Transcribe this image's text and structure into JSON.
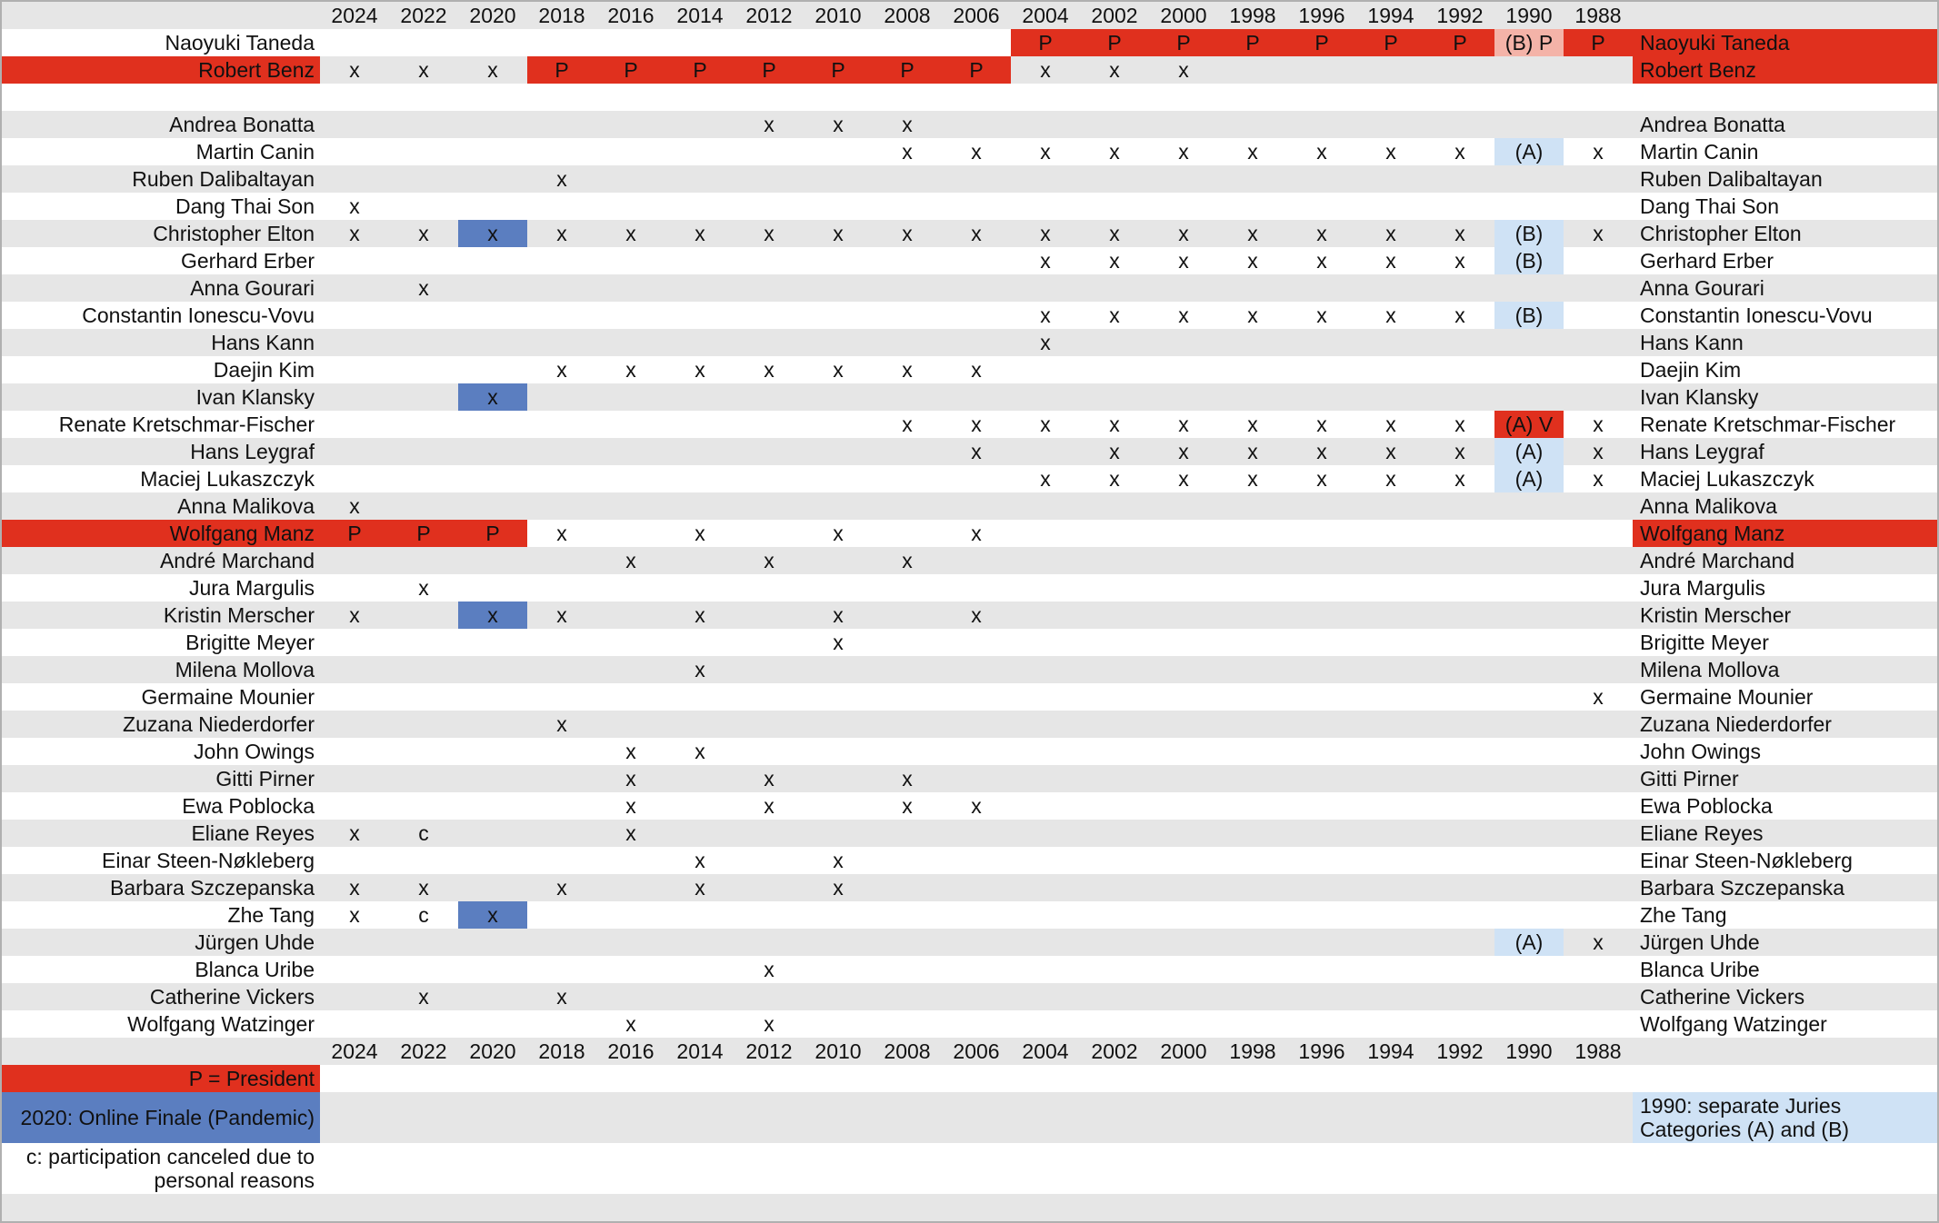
{
  "years": [
    2024,
    2022,
    2020,
    2018,
    2016,
    2014,
    2012,
    2010,
    2008,
    2006,
    2004,
    2002,
    2000,
    1998,
    1996,
    1994,
    1992,
    1990,
    1988
  ],
  "rows": [
    {
      "name": "Naoyuki Taneda",
      "right_fill": "#e0301e",
      "cells": [
        null,
        null,
        null,
        null,
        null,
        null,
        null,
        null,
        null,
        null,
        {
          "text": "P",
          "fill": "#e0301e"
        },
        {
          "text": "P",
          "fill": "#e0301e"
        },
        {
          "text": "P",
          "fill": "#e0301e"
        },
        {
          "text": "P",
          "fill": "#e0301e"
        },
        {
          "text": "P",
          "fill": "#e0301e"
        },
        {
          "text": "P",
          "fill": "#e0301e"
        },
        {
          "text": "P",
          "fill": "#e0301e"
        },
        {
          "text": "(B) P",
          "fill": "#f4b3a8"
        },
        {
          "text": "P",
          "fill": "#e0301e"
        }
      ]
    },
    {
      "name": "Robert Benz",
      "left_fill": "#e0301e",
      "right_fill": "#e0301e",
      "cells": [
        "x",
        "x",
        "x",
        {
          "text": "P",
          "fill": "#e0301e"
        },
        {
          "text": "P",
          "fill": "#e0301e"
        },
        {
          "text": "P",
          "fill": "#e0301e"
        },
        {
          "text": "P",
          "fill": "#e0301e"
        },
        {
          "text": "P",
          "fill": "#e0301e"
        },
        {
          "text": "P",
          "fill": "#e0301e"
        },
        {
          "text": "P",
          "fill": "#e0301e"
        },
        "x",
        "x",
        "x",
        null,
        null,
        null,
        null,
        null,
        null
      ]
    },
    null,
    {
      "name": "Andrea Bonatta",
      "cells": [
        null,
        null,
        null,
        null,
        null,
        null,
        "x",
        "x",
        "x",
        null,
        null,
        null,
        null,
        null,
        null,
        null,
        null,
        null,
        null
      ]
    },
    {
      "name": "Martin Canin",
      "cells": [
        null,
        null,
        null,
        null,
        null,
        null,
        null,
        null,
        "x",
        "x",
        "x",
        "x",
        "x",
        "x",
        "x",
        "x",
        "x",
        {
          "text": "(A)",
          "fill": "#cfe2f5"
        },
        "x"
      ]
    },
    {
      "name": "Ruben Dalibaltayan",
      "cells": [
        null,
        null,
        null,
        "x",
        null,
        null,
        null,
        null,
        null,
        null,
        null,
        null,
        null,
        null,
        null,
        null,
        null,
        null,
        null
      ]
    },
    {
      "name": "Dang Thai Son",
      "cells": [
        "x",
        null,
        null,
        null,
        null,
        null,
        null,
        null,
        null,
        null,
        null,
        null,
        null,
        null,
        null,
        null,
        null,
        null,
        null
      ]
    },
    {
      "name": "Christopher Elton",
      "cells": [
        "x",
        "x",
        {
          "text": "x",
          "fill": "#5b7ec0"
        },
        "x",
        "x",
        "x",
        "x",
        "x",
        "x",
        "x",
        "x",
        "x",
        "x",
        "x",
        "x",
        "x",
        "x",
        {
          "text": "(B)",
          "fill": "#cfe2f5"
        },
        "x"
      ]
    },
    {
      "name": "Gerhard Erber",
      "cells": [
        null,
        null,
        null,
        null,
        null,
        null,
        null,
        null,
        null,
        null,
        "x",
        "x",
        "x",
        "x",
        "x",
        "x",
        "x",
        {
          "text": "(B)",
          "fill": "#cfe2f5"
        },
        null
      ]
    },
    {
      "name": "Anna Gourari",
      "cells": [
        null,
        "x",
        null,
        null,
        null,
        null,
        null,
        null,
        null,
        null,
        null,
        null,
        null,
        null,
        null,
        null,
        null,
        null,
        null
      ]
    },
    {
      "name": "Constantin Ionescu-Vovu",
      "cells": [
        null,
        null,
        null,
        null,
        null,
        null,
        null,
        null,
        null,
        null,
        "x",
        "x",
        "x",
        "x",
        "x",
        "x",
        "x",
        {
          "text": "(B)",
          "fill": "#cfe2f5"
        },
        null
      ]
    },
    {
      "name": "Hans Kann",
      "cells": [
        null,
        null,
        null,
        null,
        null,
        null,
        null,
        null,
        null,
        null,
        "x",
        null,
        null,
        null,
        null,
        null,
        null,
        null,
        null
      ]
    },
    {
      "name": "Daejin Kim",
      "cells": [
        null,
        null,
        null,
        "x",
        "x",
        "x",
        "x",
        "x",
        "x",
        "x",
        null,
        null,
        null,
        null,
        null,
        null,
        null,
        null,
        null
      ]
    },
    {
      "name": "Ivan Klansky",
      "cells": [
        null,
        null,
        {
          "text": "x",
          "fill": "#5b7ec0"
        },
        null,
        null,
        null,
        null,
        null,
        null,
        null,
        null,
        null,
        null,
        null,
        null,
        null,
        null,
        null,
        null
      ]
    },
    {
      "name": "Renate Kretschmar-Fischer",
      "cells": [
        null,
        null,
        null,
        null,
        null,
        null,
        null,
        null,
        "x",
        "x",
        "x",
        "x",
        "x",
        "x",
        "x",
        "x",
        "x",
        {
          "text": "(A) V",
          "fill": "#e0301e"
        },
        "x"
      ]
    },
    {
      "name": "Hans Leygraf",
      "cells": [
        null,
        null,
        null,
        null,
        null,
        null,
        null,
        null,
        null,
        "x",
        null,
        "x",
        "x",
        "x",
        "x",
        "x",
        "x",
        {
          "text": "(A)",
          "fill": "#cfe2f5"
        },
        "x"
      ]
    },
    {
      "name": "Maciej Lukaszczyk",
      "cells": [
        null,
        null,
        null,
        null,
        null,
        null,
        null,
        null,
        null,
        null,
        "x",
        "x",
        "x",
        "x",
        "x",
        "x",
        "x",
        {
          "text": "(A)",
          "fill": "#cfe2f5"
        },
        "x"
      ]
    },
    {
      "name": "Anna Malikova",
      "cells": [
        "x",
        null,
        null,
        null,
        null,
        null,
        null,
        null,
        null,
        null,
        null,
        null,
        null,
        null,
        null,
        null,
        null,
        null,
        null
      ]
    },
    {
      "name": "Wolfgang Manz",
      "left_fill": "#e0301e",
      "right_fill": "#e0301e",
      "cells": [
        {
          "text": "P",
          "fill": "#e0301e"
        },
        {
          "text": "P",
          "fill": "#e0301e"
        },
        {
          "text": "P",
          "fill": "#e0301e"
        },
        "x",
        null,
        "x",
        null,
        "x",
        null,
        "x",
        null,
        null,
        null,
        null,
        null,
        null,
        null,
        null,
        null
      ]
    },
    {
      "name": "André Marchand",
      "cells": [
        null,
        null,
        null,
        null,
        "x",
        null,
        "x",
        null,
        "x",
        null,
        null,
        null,
        null,
        null,
        null,
        null,
        null,
        null,
        null
      ]
    },
    {
      "name": "Jura Margulis",
      "cells": [
        null,
        "x",
        null,
        null,
        null,
        null,
        null,
        null,
        null,
        null,
        null,
        null,
        null,
        null,
        null,
        null,
        null,
        null,
        null
      ]
    },
    {
      "name": "Kristin Merscher",
      "cells": [
        "x",
        null,
        {
          "text": "x",
          "fill": "#5b7ec0"
        },
        "x",
        null,
        "x",
        null,
        "x",
        null,
        "x",
        null,
        null,
        null,
        null,
        null,
        null,
        null,
        null,
        null
      ]
    },
    {
      "name": "Brigitte Meyer",
      "cells": [
        null,
        null,
        null,
        null,
        null,
        null,
        null,
        "x",
        null,
        null,
        null,
        null,
        null,
        null,
        null,
        null,
        null,
        null,
        null
      ]
    },
    {
      "name": "Milena Mollova",
      "cells": [
        null,
        null,
        null,
        null,
        null,
        "x",
        null,
        null,
        null,
        null,
        null,
        null,
        null,
        null,
        null,
        null,
        null,
        null,
        null
      ]
    },
    {
      "name": "Germaine Mounier",
      "cells": [
        null,
        null,
        null,
        null,
        null,
        null,
        null,
        null,
        null,
        null,
        null,
        null,
        null,
        null,
        null,
        null,
        null,
        null,
        "x"
      ]
    },
    {
      "name": "Zuzana Niederdorfer",
      "cells": [
        null,
        null,
        null,
        "x",
        null,
        null,
        null,
        null,
        null,
        null,
        null,
        null,
        null,
        null,
        null,
        null,
        null,
        null,
        null
      ]
    },
    {
      "name": "John Owings",
      "cells": [
        null,
        null,
        null,
        null,
        "x",
        "x",
        null,
        null,
        null,
        null,
        null,
        null,
        null,
        null,
        null,
        null,
        null,
        null,
        null
      ]
    },
    {
      "name": "Gitti Pirner",
      "cells": [
        null,
        null,
        null,
        null,
        "x",
        null,
        "x",
        null,
        "x",
        null,
        null,
        null,
        null,
        null,
        null,
        null,
        null,
        null,
        null
      ]
    },
    {
      "name": "Ewa Poblocka",
      "cells": [
        null,
        null,
        null,
        null,
        "x",
        null,
        "x",
        null,
        "x",
        "x",
        null,
        null,
        null,
        null,
        null,
        null,
        null,
        null,
        null
      ]
    },
    {
      "name": "Eliane Reyes",
      "cells": [
        "x",
        "c",
        null,
        null,
        "x",
        null,
        null,
        null,
        null,
        null,
        null,
        null,
        null,
        null,
        null,
        null,
        null,
        null,
        null
      ]
    },
    {
      "name": "Einar Steen-Nøkleberg",
      "cells": [
        null,
        null,
        null,
        null,
        null,
        "x",
        null,
        "x",
        null,
        null,
        null,
        null,
        null,
        null,
        null,
        null,
        null,
        null,
        null
      ]
    },
    {
      "name": "Barbara Szczepanska",
      "cells": [
        "x",
        "x",
        null,
        "x",
        null,
        "x",
        null,
        "x",
        null,
        null,
        null,
        null,
        null,
        null,
        null,
        null,
        null,
        null,
        null
      ]
    },
    {
      "name": "Zhe Tang",
      "cells": [
        "x",
        "c",
        {
          "text": "x",
          "fill": "#5b7ec0"
        },
        null,
        null,
        null,
        null,
        null,
        null,
        null,
        null,
        null,
        null,
        null,
        null,
        null,
        null,
        null,
        null
      ]
    },
    {
      "name": "Jürgen Uhde",
      "cells": [
        null,
        null,
        null,
        null,
        null,
        null,
        null,
        null,
        null,
        null,
        null,
        null,
        null,
        null,
        null,
        null,
        null,
        {
          "text": "(A)",
          "fill": "#cfe2f5"
        },
        "x"
      ]
    },
    {
      "name": "Blanca Uribe",
      "cells": [
        null,
        null,
        null,
        null,
        null,
        null,
        "x",
        null,
        null,
        null,
        null,
        null,
        null,
        null,
        null,
        null,
        null,
        null,
        null
      ]
    },
    {
      "name": "Catherine Vickers",
      "cells": [
        null,
        "x",
        null,
        "x",
        null,
        null,
        null,
        null,
        null,
        null,
        null,
        null,
        null,
        null,
        null,
        null,
        null,
        null,
        null
      ]
    },
    {
      "name": "Wolfgang Watzinger",
      "cells": [
        null,
        null,
        null,
        null,
        "x",
        null,
        "x",
        null,
        null,
        null,
        null,
        null,
        null,
        null,
        null,
        null,
        null,
        null,
        null
      ]
    }
  ],
  "legend": [
    {
      "text": "P = President",
      "fill": "#e0301e"
    },
    {
      "text": "2020: Online Finale (Pandemic)",
      "fill": "#5b7ec0"
    },
    {
      "text": "c: participation canceled due to personal reasons"
    }
  ],
  "note": {
    "text": "1990: separate Juries Categories (A) and (B)",
    "fill": "#cfe2f5"
  }
}
